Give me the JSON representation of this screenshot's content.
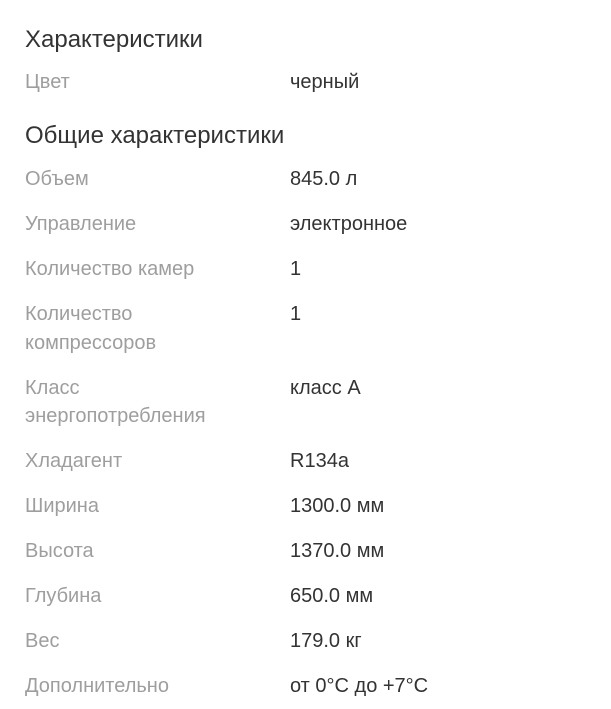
{
  "sections": [
    {
      "title": "Характеристики",
      "rows": [
        {
          "label": "Цвет",
          "value": "черный"
        }
      ]
    },
    {
      "title": "Общие характеристики",
      "rows": [
        {
          "label": "Объем",
          "value": "845.0 л"
        },
        {
          "label": "Управление",
          "value": "электронное"
        },
        {
          "label": "Количество камер",
          "value": "1"
        },
        {
          "label": "Количество компрессоров",
          "value": "1"
        },
        {
          "label": "Класс энергопотребления",
          "value": "класс A"
        },
        {
          "label": "Хладагент",
          "value": "R134a"
        },
        {
          "label": "Ширина",
          "value": "1300.0 мм"
        },
        {
          "label": "Высота",
          "value": "1370.0 мм"
        },
        {
          "label": "Глубина",
          "value": "650.0 мм"
        },
        {
          "label": "Вес",
          "value": "179.0 кг"
        },
        {
          "label": "Дополнительно",
          "value": "от 0°C до +7°C"
        }
      ]
    }
  ]
}
